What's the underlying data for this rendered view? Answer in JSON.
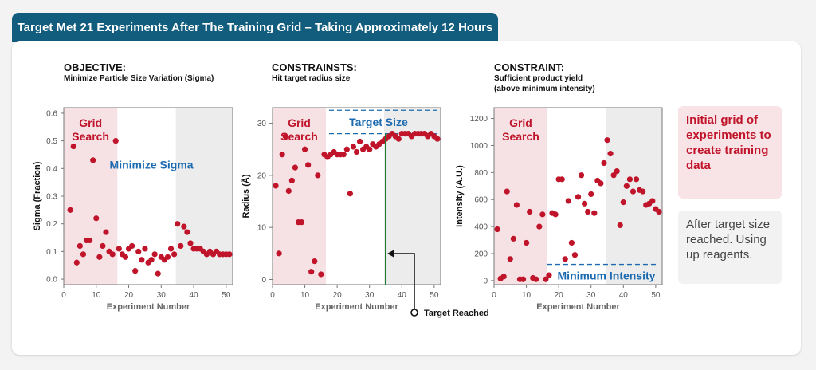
{
  "banner": {
    "title": "Target Met 21 Experiments After The Training Grid – Taking Approximately 12 Hours"
  },
  "panels": [
    {
      "title": "OBJECTIVE:",
      "subtitle_lines": [
        "Minimize Particle Size Variation (Sigma)"
      ]
    },
    {
      "title": "CONSTRAINSTS:",
      "subtitle_lines": [
        "Hit target radius size"
      ]
    },
    {
      "title": "CONSTRAINT:",
      "subtitle_lines": [
        "Sufficient product yield",
        "(above minimum intensity)"
      ]
    }
  ],
  "legend": {
    "grid_text": "Initial grid of experiments to create training data",
    "after_text": "After target size reached. Using up reagents."
  },
  "colors": {
    "point": "#c0142a",
    "grid_bg": "#f6e1e5",
    "after_bg": "#ececec",
    "blue": "#1c6bb0",
    "green": "#1a7a2e",
    "banner": "#125d7d"
  },
  "chart_data": [
    {
      "type": "scatter",
      "title": "Minimize Particle Size Variation (Sigma)",
      "xlabel": "Experiment Number",
      "ylabel": "Sigma (Fraction)",
      "xlim": [
        0,
        52
      ],
      "ylim": [
        -0.02,
        0.62
      ],
      "xticks": [
        0,
        10,
        20,
        30,
        40,
        50
      ],
      "yticks": [
        0.0,
        0.1,
        0.2,
        0.3,
        0.4,
        0.5,
        0.6
      ],
      "ytick_labels": [
        "0.0",
        "0.1",
        "0.2",
        "0.3",
        "0.4",
        "0.5",
        "0.6"
      ],
      "regions": [
        {
          "name": "grid",
          "label_lines": [
            "Grid",
            "Search"
          ],
          "x_range": [
            0,
            16.5
          ]
        },
        {
          "name": "after",
          "x_range": [
            34.5,
            52
          ]
        }
      ],
      "annotations": [
        {
          "text": "Minimize Sigma",
          "x": 27,
          "y": 0.4
        }
      ],
      "x": [
        2,
        3,
        4,
        5,
        6,
        7,
        8,
        9,
        10,
        11,
        12,
        13,
        14,
        15,
        16,
        17,
        18,
        19,
        20,
        21,
        22,
        23,
        24,
        25,
        26,
        27,
        28,
        29,
        30,
        31,
        32,
        33,
        34,
        35,
        36,
        37,
        38,
        39,
        40,
        41,
        42,
        43,
        44,
        45,
        46,
        47,
        48,
        49,
        50,
        51
      ],
      "y": [
        0.25,
        0.48,
        0.06,
        0.12,
        0.09,
        0.14,
        0.14,
        0.43,
        0.22,
        0.08,
        0.12,
        0.17,
        0.1,
        0.09,
        0.5,
        0.11,
        0.09,
        0.08,
        0.11,
        0.12,
        0.03,
        0.1,
        0.07,
        0.11,
        0.06,
        0.07,
        0.09,
        0.02,
        0.08,
        0.07,
        0.08,
        0.11,
        0.09,
        0.2,
        0.12,
        0.19,
        0.17,
        0.13,
        0.11,
        0.11,
        0.11,
        0.1,
        0.09,
        0.1,
        0.09,
        0.1,
        0.09,
        0.09,
        0.09,
        0.09
      ]
    },
    {
      "type": "scatter",
      "title": "Hit target radius size",
      "xlabel": "Experiment Number",
      "ylabel": "Radius (Å)",
      "xlim": [
        0,
        52
      ],
      "ylim": [
        -1,
        33
      ],
      "xticks": [
        0,
        10,
        20,
        30,
        40,
        50
      ],
      "yticks": [
        0,
        10,
        20,
        30
      ],
      "ytick_labels": [
        "0",
        "10",
        "20",
        "30"
      ],
      "regions": [
        {
          "name": "grid",
          "label_lines": [
            "Grid",
            "Search"
          ],
          "x_range": [
            0,
            16.5
          ]
        },
        {
          "name": "after",
          "x_range": [
            34.5,
            52
          ]
        }
      ],
      "target_band": {
        "label": "Target Size",
        "lower": 28,
        "upper": 32.5,
        "x_start": 17.5
      },
      "target_line": {
        "x": 35,
        "label": "Target Reached"
      },
      "x": [
        1,
        2,
        3,
        4,
        5,
        6,
        7,
        8,
        9,
        10,
        11,
        12,
        13,
        14,
        15,
        16,
        17,
        18,
        19,
        20,
        21,
        22,
        23,
        24,
        25,
        26,
        27,
        28,
        29,
        30,
        31,
        32,
        33,
        34,
        35,
        36,
        37,
        38,
        39,
        40,
        41,
        42,
        43,
        44,
        45,
        46,
        47,
        48,
        49,
        50,
        51
      ],
      "y": [
        18,
        5,
        24,
        27.5,
        17,
        19,
        21.5,
        11,
        11,
        25,
        22,
        1.5,
        3.5,
        20,
        1,
        24,
        23.5,
        24,
        24.5,
        24,
        24,
        24,
        25,
        16.5,
        25.5,
        24.5,
        26.5,
        25,
        25.5,
        25,
        26,
        25.5,
        26,
        26.5,
        27,
        27.5,
        28,
        27.5,
        27,
        28,
        28,
        28,
        27.5,
        28,
        28,
        28,
        28,
        27.5,
        28,
        27.5,
        27
      ]
    },
    {
      "type": "scatter",
      "title": "Sufficient product yield (above minimum intensity)",
      "xlabel": "Experiment Number",
      "ylabel": "Intensity (A.U.)",
      "xlim": [
        0,
        52
      ],
      "ylim": [
        -30,
        1280
      ],
      "xticks": [
        0,
        10,
        20,
        30,
        40,
        50
      ],
      "yticks": [
        0,
        200,
        400,
        600,
        800,
        1000,
        1200
      ],
      "ytick_labels": [
        "0",
        "200",
        "400",
        "600",
        "800",
        "1000",
        "1200"
      ],
      "regions": [
        {
          "name": "grid",
          "label_lines": [
            "Grid",
            "Search"
          ],
          "x_range": [
            0,
            16.5
          ]
        },
        {
          "name": "after",
          "x_range": [
            34.5,
            52
          ]
        }
      ],
      "threshold": {
        "label": "Minimum Intensity",
        "y": 120,
        "x_start": 16.5
      },
      "x": [
        1,
        2,
        3,
        4,
        5,
        6,
        7,
        8,
        9,
        10,
        11,
        12,
        13,
        14,
        15,
        16,
        17,
        18,
        19,
        20,
        21,
        22,
        23,
        24,
        25,
        26,
        27,
        28,
        29,
        30,
        31,
        32,
        33,
        34,
        35,
        36,
        37,
        38,
        39,
        40,
        41,
        42,
        43,
        44,
        45,
        46,
        47,
        48,
        49,
        50,
        51
      ],
      "y": [
        380,
        15,
        30,
        660,
        160,
        310,
        560,
        10,
        10,
        280,
        510,
        20,
        10,
        400,
        490,
        10,
        40,
        500,
        490,
        750,
        750,
        160,
        590,
        280,
        190,
        620,
        780,
        570,
        510,
        640,
        500,
        740,
        720,
        870,
        1040,
        940,
        780,
        810,
        410,
        580,
        700,
        750,
        660,
        750,
        670,
        660,
        560,
        570,
        590,
        530,
        510
      ]
    }
  ]
}
